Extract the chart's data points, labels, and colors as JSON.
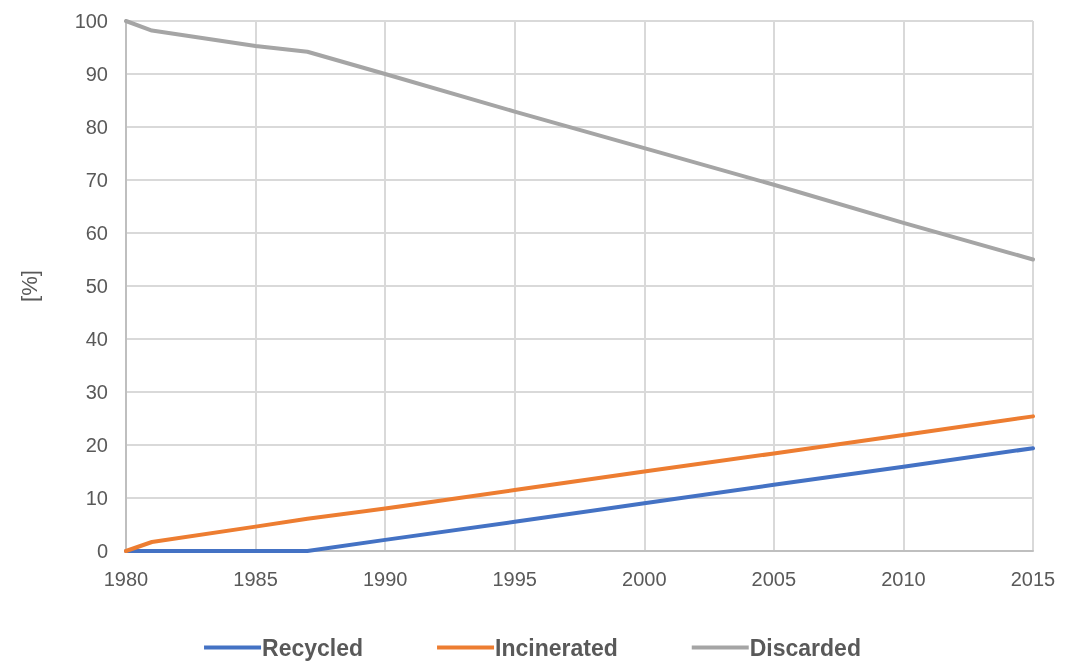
{
  "chart_data": {
    "type": "line",
    "ylabel": "[%]",
    "x": [
      1980,
      1981,
      1985,
      1987,
      1990,
      1995,
      2000,
      2005,
      2010,
      2015
    ],
    "series": [
      {
        "name": "Recycled",
        "color": "#4472c4",
        "values": [
          0,
          0,
          0,
          0,
          2.1,
          5.5,
          9,
          12.5,
          15.9,
          19.4
        ]
      },
      {
        "name": "Incinerated",
        "color": "#ed7d31",
        "values": [
          0,
          1.7,
          4.6,
          6.1,
          8,
          11.5,
          15,
          18.4,
          21.9,
          25.4
        ]
      },
      {
        "name": "Discarded",
        "color": "#a5a5a5",
        "values": [
          100,
          98.2,
          95.3,
          94.2,
          90,
          82.9,
          76,
          69.1,
          61.9,
          55
        ]
      }
    ],
    "xlim": [
      1980,
      2015
    ],
    "ylim": [
      0,
      100
    ],
    "xticks": [
      1980,
      1985,
      1990,
      1995,
      2000,
      2005,
      2010,
      2015
    ],
    "yticks": [
      0,
      10,
      20,
      30,
      40,
      50,
      60,
      70,
      80,
      90,
      100
    ],
    "grid": true,
    "legend": "bottom",
    "marker": "none",
    "line_style": "solid"
  }
}
